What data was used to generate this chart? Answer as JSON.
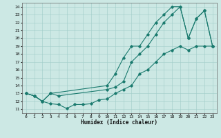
{
  "xlabel": "Humidex (Indice chaleur)",
  "xlim": [
    -0.5,
    23.5
  ],
  "ylim": [
    10.5,
    24.5
  ],
  "xticks": [
    0,
    1,
    2,
    3,
    4,
    5,
    6,
    7,
    8,
    9,
    10,
    11,
    12,
    13,
    14,
    15,
    16,
    17,
    18,
    19,
    20,
    21,
    22,
    23
  ],
  "yticks": [
    11,
    12,
    13,
    14,
    15,
    16,
    17,
    18,
    19,
    20,
    21,
    22,
    23,
    24
  ],
  "line_color": "#1a7a6e",
  "bg_color": "#cce8e4",
  "grid_color": "#a0cdc8",
  "line1_x": [
    0,
    1,
    2,
    3,
    10,
    11,
    12,
    13,
    14,
    15,
    16,
    17,
    18,
    19,
    20,
    21,
    22,
    23
  ],
  "line1_y": [
    13,
    12.7,
    12.0,
    13.0,
    14.0,
    15.5,
    17.5,
    19.0,
    19.0,
    20.5,
    22.0,
    23.0,
    24.0,
    24.0,
    20.0,
    22.5,
    23.5,
    19.0
  ],
  "line2_x": [
    0,
    1,
    2,
    3,
    4,
    10,
    11,
    12,
    13,
    14,
    15,
    16,
    17,
    18,
    19,
    20,
    21,
    22,
    23
  ],
  "line2_y": [
    13,
    12.7,
    12.0,
    13.0,
    12.7,
    13.5,
    13.8,
    14.5,
    17.0,
    18.0,
    19.0,
    20.5,
    22.0,
    23.0,
    24.0,
    20.0,
    22.5,
    23.5,
    19.0
  ],
  "line3_x": [
    0,
    1,
    2,
    3,
    4,
    5,
    6,
    7,
    8,
    9,
    10,
    11,
    12,
    13,
    14,
    15,
    16,
    17,
    18,
    19,
    20,
    21,
    22,
    23
  ],
  "line3_y": [
    13,
    12.7,
    12.0,
    11.7,
    11.6,
    11.1,
    11.6,
    11.6,
    11.7,
    12.2,
    12.3,
    13.0,
    13.5,
    14.0,
    15.5,
    16.0,
    17.0,
    18.0,
    18.5,
    19.0,
    18.5,
    19.0,
    19.0,
    19.0
  ]
}
